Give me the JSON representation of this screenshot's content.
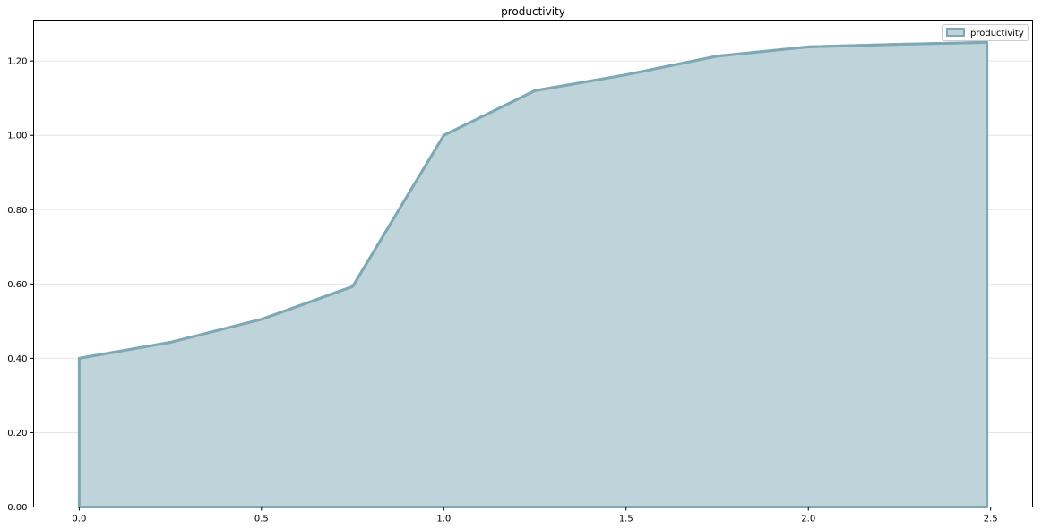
{
  "chart_data": {
    "type": "area",
    "title": "productivity",
    "xlabel": "",
    "ylabel": "",
    "x": [
      0.0,
      0.25,
      0.5,
      0.75,
      1.0,
      1.25,
      1.5,
      1.75,
      2.0,
      2.25,
      2.49
    ],
    "series": [
      {
        "name": "productivity",
        "values": [
          0.4,
          0.443,
          0.505,
          0.593,
          1.0,
          1.12,
          1.163,
          1.213,
          1.238,
          1.245,
          1.25
        ],
        "line_color": "#7fa8b5",
        "fill_color": "#bfd4da"
      }
    ],
    "xlim": [
      -0.125,
      2.615
    ],
    "ylim": [
      0.0,
      1.31
    ],
    "x_ticks": [
      0.0,
      0.5,
      1.0,
      1.5,
      2.0,
      2.5
    ],
    "x_tick_labels": [
      "0.0",
      "0.5",
      "1.0",
      "1.5",
      "2.0",
      "2.5"
    ],
    "y_ticks": [
      0.0,
      0.2,
      0.4,
      0.6,
      0.8,
      1.0,
      1.2
    ],
    "y_tick_labels": [
      "0.00",
      "0.20",
      "0.40",
      "0.60",
      "0.80",
      "1.00",
      "1.20"
    ],
    "grid": "horizontal",
    "legend_position": "top-right"
  }
}
